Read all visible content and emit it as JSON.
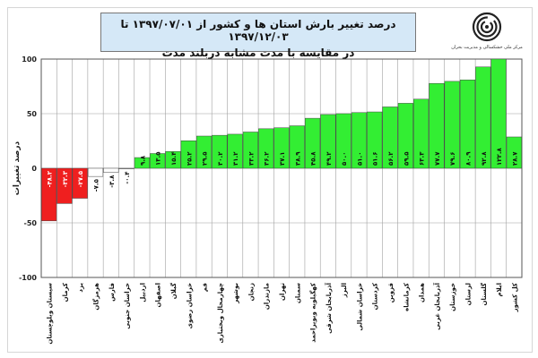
{
  "header": {
    "title_line1": "درصد تغییر بارش استان ها و کشور از ۱۳۹۷/۰۷/۰۱ تا ۱۳۹۷/۱۲/۰۳",
    "title_line2": "در مقایسه با مدت مشابه دربلند مدت"
  },
  "logo": {
    "caption": "مرکز ملی خشکسالی و مدیریت بحران",
    "icon": "spiral-logo-icon"
  },
  "colors": {
    "negative": "#ef1f1f",
    "small": "#ffffff",
    "positive": "#33ee33",
    "grid": "#a0a0a0",
    "bar_border": "#444444",
    "plot_border": "#555555"
  },
  "chart_data": {
    "type": "bar",
    "ylabel": "درصد تغییرات",
    "ylim": [
      -100,
      100
    ],
    "yticks": [
      {
        "value": 100,
        "label": "100"
      },
      {
        "value": 50,
        "label": "50"
      },
      {
        "value": 0,
        "label": "0"
      },
      {
        "value": -50,
        "label": "-50"
      },
      {
        "value": -100,
        "label": "-100"
      }
    ],
    "grid": true,
    "categories": [
      "سیستان وبلوچستان",
      "کرمان",
      "یزد",
      "هرمزگان",
      "فارس",
      "خراسان جنوبی",
      "اردبیل",
      "اصفهان",
      "گیلان",
      "خراسان رضوی",
      "قم",
      "چهارمحال وبختیاری",
      "بوشهر",
      "زنجان",
      "مازندران",
      "تهران",
      "سمنان",
      "کهگیلویه وبویراحمد",
      "آذربایجان شرقی",
      "البرز",
      "خراسان شمالی",
      "کردستان",
      "قزوین",
      "کرمانشاه",
      "همدان",
      "آذربایجان غربی",
      "خوزستان",
      "لرستان",
      "گلستان",
      "ایلام",
      "کل کشور"
    ],
    "values": [
      -48.2,
      -32.3,
      -27.5,
      -7.5,
      -3.8,
      -0.4,
      9.8,
      13.5,
      15.4,
      25.2,
      29.5,
      30.2,
      31.2,
      33.2,
      36.2,
      37.1,
      38.9,
      45.8,
      49.2,
      50.0,
      51.0,
      51.6,
      56.2,
      59.5,
      63.3,
      77.7,
      79.6,
      80.9,
      92.8,
      122.8,
      28.7
    ],
    "value_labels": [
      "-۴۸.۲",
      "-۳۲.۳",
      "-۲۷.۵",
      "-۷.۵",
      "-۳.۸",
      "-۰.۴",
      "۹.۸",
      "۱۳.۵",
      "۱۵.۴",
      "۲۵.۲",
      "۲۹.۵",
      "۳۰.۲",
      "۳۱.۲",
      "۳۳.۲",
      "۳۶.۲",
      "۳۷.۱",
      "۳۸.۹",
      "۴۵.۸",
      "۴۹.۲",
      "۵۰.۰",
      "۵۱.۰",
      "۵۱.۶",
      "۵۶.۲",
      "۵۹.۵",
      "۶۳.۳",
      "۷۷.۷",
      "۷۹.۶",
      "۸۰.۹",
      "۹۲.۸",
      "۱۲۲.۸",
      "۲۸.۷"
    ]
  }
}
